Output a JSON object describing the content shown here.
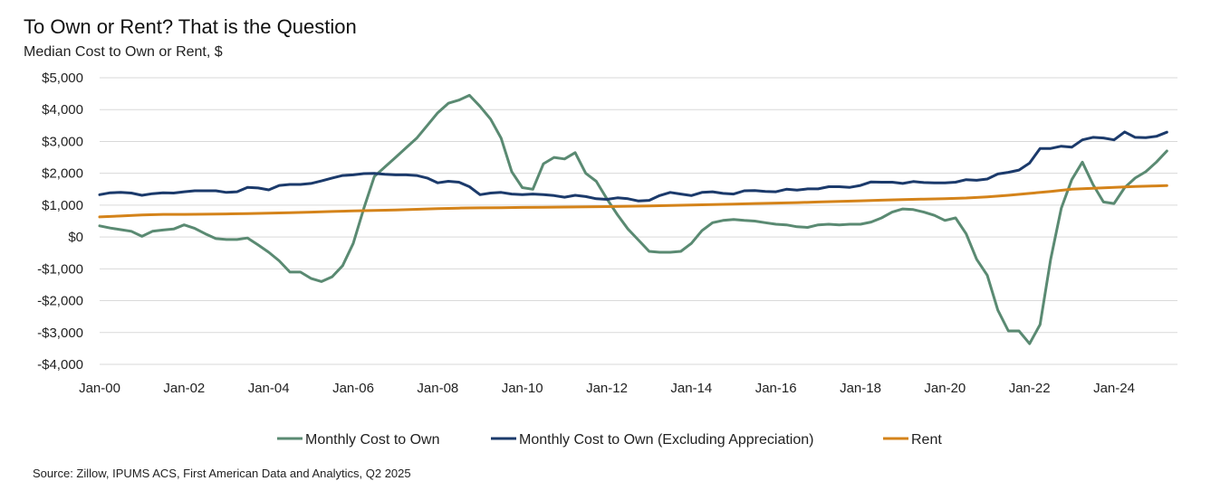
{
  "chart_data": {
    "type": "line",
    "title": "To Own or Rent? That is the Question",
    "subtitle": "Median Cost to Own or Rent, $",
    "source": "Source: Zillow, IPUMS ACS, First American Data and Analytics, Q2 2025",
    "xlabel": "",
    "ylabel": "",
    "ylim": [
      -4000,
      5000
    ],
    "yticks": [
      {
        "value": 5000,
        "label": "$5,000"
      },
      {
        "value": 4000,
        "label": "$4,000"
      },
      {
        "value": 3000,
        "label": "$3,000"
      },
      {
        "value": 2000,
        "label": "$2,000"
      },
      {
        "value": 1000,
        "label": "$1,000"
      },
      {
        "value": 0,
        "label": "$0"
      },
      {
        "value": -1000,
        "label": "-$1,000"
      },
      {
        "value": -2000,
        "label": "-$2,000"
      },
      {
        "value": -3000,
        "label": "-$3,000"
      },
      {
        "value": -4000,
        "label": "-$4,000"
      }
    ],
    "xlim": [
      2000.0,
      2025.5
    ],
    "xticks": [
      {
        "value": 2000,
        "label": "Jan-00"
      },
      {
        "value": 2002,
        "label": "Jan-02"
      },
      {
        "value": 2004,
        "label": "Jan-04"
      },
      {
        "value": 2006,
        "label": "Jan-06"
      },
      {
        "value": 2008,
        "label": "Jan-08"
      },
      {
        "value": 2010,
        "label": "Jan-10"
      },
      {
        "value": 2012,
        "label": "Jan-12"
      },
      {
        "value": 2014,
        "label": "Jan-14"
      },
      {
        "value": 2016,
        "label": "Jan-16"
      },
      {
        "value": 2018,
        "label": "Jan-18"
      },
      {
        "value": 2020,
        "label": "Jan-20"
      },
      {
        "value": 2022,
        "label": "Jan-22"
      },
      {
        "value": 2024,
        "label": "Jan-24"
      }
    ],
    "grid": true,
    "legend_position": "bottom",
    "series": [
      {
        "name": "Monthly Cost to Own",
        "color": "#5a8a72",
        "points": [
          [
            2000.0,
            350
          ],
          [
            2000.25,
            280
          ],
          [
            2000.5,
            230
          ],
          [
            2000.75,
            180
          ],
          [
            2001.0,
            20
          ],
          [
            2001.25,
            180
          ],
          [
            2001.5,
            220
          ],
          [
            2001.75,
            250
          ],
          [
            2002.0,
            380
          ],
          [
            2002.25,
            270
          ],
          [
            2002.5,
            100
          ],
          [
            2002.75,
            -50
          ],
          [
            2003.0,
            -80
          ],
          [
            2003.25,
            -80
          ],
          [
            2003.5,
            -30
          ],
          [
            2003.75,
            -250
          ],
          [
            2004.0,
            -480
          ],
          [
            2004.25,
            -750
          ],
          [
            2004.5,
            -1100
          ],
          [
            2004.75,
            -1100
          ],
          [
            2005.0,
            -1300
          ],
          [
            2005.25,
            -1400
          ],
          [
            2005.5,
            -1250
          ],
          [
            2005.75,
            -900
          ],
          [
            2006.0,
            -200
          ],
          [
            2006.25,
            900
          ],
          [
            2006.5,
            1900
          ],
          [
            2006.75,
            2200
          ],
          [
            2007.0,
            2500
          ],
          [
            2007.25,
            2800
          ],
          [
            2007.5,
            3100
          ],
          [
            2007.75,
            3500
          ],
          [
            2008.0,
            3900
          ],
          [
            2008.25,
            4200
          ],
          [
            2008.5,
            4300
          ],
          [
            2008.75,
            4450
          ],
          [
            2009.0,
            4100
          ],
          [
            2009.25,
            3700
          ],
          [
            2009.5,
            3100
          ],
          [
            2009.75,
            2050
          ],
          [
            2010.0,
            1550
          ],
          [
            2010.25,
            1500
          ],
          [
            2010.5,
            2300
          ],
          [
            2010.75,
            2500
          ],
          [
            2011.0,
            2450
          ],
          [
            2011.25,
            2650
          ],
          [
            2011.5,
            2000
          ],
          [
            2011.75,
            1750
          ],
          [
            2012.0,
            1200
          ],
          [
            2012.25,
            700
          ],
          [
            2012.5,
            250
          ],
          [
            2012.75,
            -100
          ],
          [
            2013.0,
            -450
          ],
          [
            2013.25,
            -480
          ],
          [
            2013.5,
            -480
          ],
          [
            2013.75,
            -450
          ],
          [
            2014.0,
            -200
          ],
          [
            2014.25,
            200
          ],
          [
            2014.5,
            450
          ],
          [
            2014.75,
            520
          ],
          [
            2015.0,
            550
          ],
          [
            2015.25,
            520
          ],
          [
            2015.5,
            500
          ],
          [
            2015.75,
            450
          ],
          [
            2016.0,
            400
          ],
          [
            2016.25,
            380
          ],
          [
            2016.5,
            320
          ],
          [
            2016.75,
            300
          ],
          [
            2017.0,
            380
          ],
          [
            2017.25,
            400
          ],
          [
            2017.5,
            380
          ],
          [
            2017.75,
            400
          ],
          [
            2018.0,
            400
          ],
          [
            2018.25,
            470
          ],
          [
            2018.5,
            600
          ],
          [
            2018.75,
            780
          ],
          [
            2019.0,
            880
          ],
          [
            2019.25,
            860
          ],
          [
            2019.5,
            780
          ],
          [
            2019.75,
            680
          ],
          [
            2020.0,
            520
          ],
          [
            2020.25,
            600
          ],
          [
            2020.5,
            100
          ],
          [
            2020.75,
            -700
          ],
          [
            2021.0,
            -1200
          ],
          [
            2021.25,
            -2300
          ],
          [
            2021.5,
            -2950
          ],
          [
            2021.75,
            -2950
          ],
          [
            2022.0,
            -3350
          ],
          [
            2022.25,
            -2750
          ],
          [
            2022.5,
            -700
          ],
          [
            2022.75,
            900
          ],
          [
            2023.0,
            1800
          ],
          [
            2023.25,
            2350
          ],
          [
            2023.5,
            1650
          ],
          [
            2023.75,
            1100
          ],
          [
            2024.0,
            1050
          ],
          [
            2024.25,
            1550
          ],
          [
            2024.5,
            1850
          ],
          [
            2024.75,
            2050
          ],
          [
            2025.0,
            2350
          ],
          [
            2025.25,
            2700
          ]
        ]
      },
      {
        "name": "Monthly Cost to Own (Excluding Appreciation)",
        "color": "#1b3a6b",
        "points": [
          [
            2000.0,
            1330
          ],
          [
            2000.25,
            1390
          ],
          [
            2000.5,
            1400
          ],
          [
            2000.75,
            1380
          ],
          [
            2001.0,
            1310
          ],
          [
            2001.25,
            1360
          ],
          [
            2001.5,
            1390
          ],
          [
            2001.75,
            1380
          ],
          [
            2002.0,
            1420
          ],
          [
            2002.25,
            1450
          ],
          [
            2002.5,
            1450
          ],
          [
            2002.75,
            1450
          ],
          [
            2003.0,
            1400
          ],
          [
            2003.25,
            1420
          ],
          [
            2003.5,
            1560
          ],
          [
            2003.75,
            1540
          ],
          [
            2004.0,
            1480
          ],
          [
            2004.25,
            1620
          ],
          [
            2004.5,
            1650
          ],
          [
            2004.75,
            1650
          ],
          [
            2005.0,
            1680
          ],
          [
            2005.25,
            1760
          ],
          [
            2005.5,
            1850
          ],
          [
            2005.75,
            1930
          ],
          [
            2006.0,
            1950
          ],
          [
            2006.25,
            1990
          ],
          [
            2006.5,
            2000
          ],
          [
            2006.75,
            1970
          ],
          [
            2007.0,
            1950
          ],
          [
            2007.25,
            1950
          ],
          [
            2007.5,
            1930
          ],
          [
            2007.75,
            1850
          ],
          [
            2008.0,
            1700
          ],
          [
            2008.25,
            1750
          ],
          [
            2008.5,
            1720
          ],
          [
            2008.75,
            1580
          ],
          [
            2009.0,
            1330
          ],
          [
            2009.25,
            1380
          ],
          [
            2009.5,
            1400
          ],
          [
            2009.75,
            1350
          ],
          [
            2010.0,
            1330
          ],
          [
            2010.25,
            1350
          ],
          [
            2010.5,
            1330
          ],
          [
            2010.75,
            1300
          ],
          [
            2011.0,
            1250
          ],
          [
            2011.25,
            1310
          ],
          [
            2011.5,
            1270
          ],
          [
            2011.75,
            1200
          ],
          [
            2012.0,
            1180
          ],
          [
            2012.25,
            1230
          ],
          [
            2012.5,
            1200
          ],
          [
            2012.75,
            1130
          ],
          [
            2013.0,
            1150
          ],
          [
            2013.25,
            1300
          ],
          [
            2013.5,
            1400
          ],
          [
            2013.75,
            1350
          ],
          [
            2014.0,
            1300
          ],
          [
            2014.25,
            1400
          ],
          [
            2014.5,
            1420
          ],
          [
            2014.75,
            1370
          ],
          [
            2015.0,
            1350
          ],
          [
            2015.25,
            1450
          ],
          [
            2015.5,
            1460
          ],
          [
            2015.75,
            1430
          ],
          [
            2016.0,
            1420
          ],
          [
            2016.25,
            1500
          ],
          [
            2016.5,
            1470
          ],
          [
            2016.75,
            1510
          ],
          [
            2017.0,
            1510
          ],
          [
            2017.25,
            1580
          ],
          [
            2017.5,
            1580
          ],
          [
            2017.75,
            1560
          ],
          [
            2018.0,
            1620
          ],
          [
            2018.25,
            1730
          ],
          [
            2018.5,
            1720
          ],
          [
            2018.75,
            1720
          ],
          [
            2019.0,
            1680
          ],
          [
            2019.25,
            1740
          ],
          [
            2019.5,
            1710
          ],
          [
            2019.75,
            1700
          ],
          [
            2020.0,
            1700
          ],
          [
            2020.25,
            1720
          ],
          [
            2020.5,
            1800
          ],
          [
            2020.75,
            1780
          ],
          [
            2021.0,
            1820
          ],
          [
            2021.25,
            1980
          ],
          [
            2021.5,
            2030
          ],
          [
            2021.75,
            2100
          ],
          [
            2022.0,
            2320
          ],
          [
            2022.25,
            2780
          ],
          [
            2022.5,
            2780
          ],
          [
            2022.75,
            2850
          ],
          [
            2023.0,
            2820
          ],
          [
            2023.25,
            3050
          ],
          [
            2023.5,
            3130
          ],
          [
            2023.75,
            3110
          ],
          [
            2024.0,
            3050
          ],
          [
            2024.25,
            3300
          ],
          [
            2024.5,
            3130
          ],
          [
            2024.75,
            3120
          ],
          [
            2025.0,
            3160
          ],
          [
            2025.25,
            3290
          ]
        ]
      },
      {
        "name": "Rent",
        "color": "#d4831a",
        "points": [
          [
            2000.0,
            630
          ],
          [
            2000.5,
            660
          ],
          [
            2001.0,
            690
          ],
          [
            2001.5,
            710
          ],
          [
            2002.0,
            710
          ],
          [
            2002.5,
            715
          ],
          [
            2003.0,
            725
          ],
          [
            2003.5,
            735
          ],
          [
            2004.0,
            750
          ],
          [
            2004.5,
            765
          ],
          [
            2005.0,
            780
          ],
          [
            2005.5,
            800
          ],
          [
            2006.0,
            820
          ],
          [
            2006.5,
            835
          ],
          [
            2007.0,
            850
          ],
          [
            2007.5,
            870
          ],
          [
            2008.0,
            890
          ],
          [
            2008.5,
            905
          ],
          [
            2009.0,
            915
          ],
          [
            2009.5,
            920
          ],
          [
            2010.0,
            930
          ],
          [
            2010.5,
            935
          ],
          [
            2011.0,
            940
          ],
          [
            2011.5,
            945
          ],
          [
            2012.0,
            955
          ],
          [
            2012.5,
            965
          ],
          [
            2013.0,
            975
          ],
          [
            2013.5,
            990
          ],
          [
            2014.0,
            1005
          ],
          [
            2014.5,
            1020
          ],
          [
            2015.0,
            1035
          ],
          [
            2015.5,
            1050
          ],
          [
            2016.0,
            1065
          ],
          [
            2016.5,
            1080
          ],
          [
            2017.0,
            1100
          ],
          [
            2017.5,
            1115
          ],
          [
            2018.0,
            1135
          ],
          [
            2018.5,
            1155
          ],
          [
            2019.0,
            1175
          ],
          [
            2019.5,
            1190
          ],
          [
            2020.0,
            1205
          ],
          [
            2020.5,
            1225
          ],
          [
            2021.0,
            1260
          ],
          [
            2021.5,
            1310
          ],
          [
            2022.0,
            1370
          ],
          [
            2022.5,
            1430
          ],
          [
            2023.0,
            1500
          ],
          [
            2023.5,
            1530
          ],
          [
            2024.0,
            1560
          ],
          [
            2024.5,
            1585
          ],
          [
            2025.0,
            1605
          ],
          [
            2025.25,
            1615
          ]
        ]
      }
    ]
  }
}
